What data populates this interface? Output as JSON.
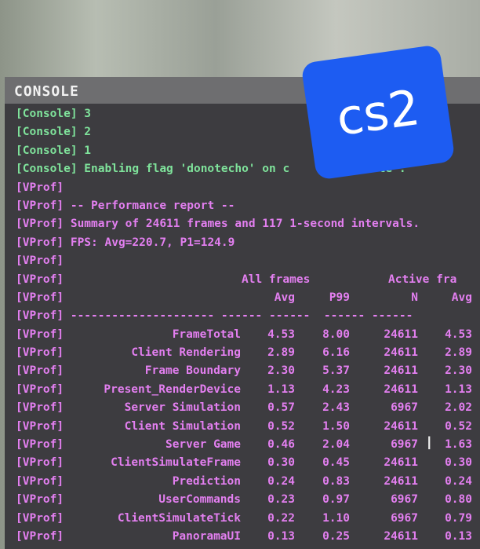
{
  "console": {
    "title": "CONSOLE",
    "green_lines": [
      "[Console] 3",
      "[Console] 2",
      "[Console] 1",
      "[Console] Enabling flag 'donotecho' on c        console'."
    ],
    "prefix": "[VProf]",
    "text_lines": [
      "",
      "-- Performance report --",
      "Summary of 24611 frames and 117 1-second intervals.",
      "FPS: Avg=220.7, P1=124.9",
      ""
    ],
    "table": {
      "group_headers": {
        "all": "All frames",
        "active": "Active fra"
      },
      "columns": [
        "",
        "Avg",
        "P99",
        "N",
        "Avg"
      ],
      "separator": "--------------------- ------ ------  ------ ------",
      "rows": [
        [
          "FrameTotal",
          "4.53",
          "8.00",
          "24611",
          "4.53"
        ],
        [
          "Client Rendering",
          "2.89",
          "6.16",
          "24611",
          "2.89"
        ],
        [
          "Frame Boundary",
          "2.30",
          "5.37",
          "24611",
          "2.30"
        ],
        [
          "Present_RenderDevice",
          "1.13",
          "4.23",
          "24611",
          "1.13"
        ],
        [
          "Server Simulation",
          "0.57",
          "2.43",
          "6967",
          "2.02"
        ],
        [
          "Client Simulation",
          "0.52",
          "1.50",
          "24611",
          "0.52"
        ],
        [
          "Server Game",
          "0.46",
          "2.04",
          "6967",
          "1.63"
        ],
        [
          "ClientSimulateFrame",
          "0.30",
          "0.45",
          "24611",
          "0.30"
        ],
        [
          "Prediction",
          "0.24",
          "0.83",
          "24611",
          "0.24"
        ],
        [
          "UserCommands",
          "0.23",
          "0.97",
          "6967",
          "0.80"
        ],
        [
          "ClientSimulateTick",
          "0.22",
          "1.10",
          "6967",
          "0.79"
        ],
        [
          "PanoramaUI",
          "0.13",
          "0.25",
          "24611",
          "0.13"
        ]
      ]
    },
    "colors": {
      "console_green": "#7fe39b",
      "vprof_pink": "#e37ff0",
      "panel": "#3d3c40"
    }
  },
  "badge": {
    "label": "cs2",
    "color": "#1d5cf2"
  },
  "cursor_icon": "text-cursor-icon"
}
